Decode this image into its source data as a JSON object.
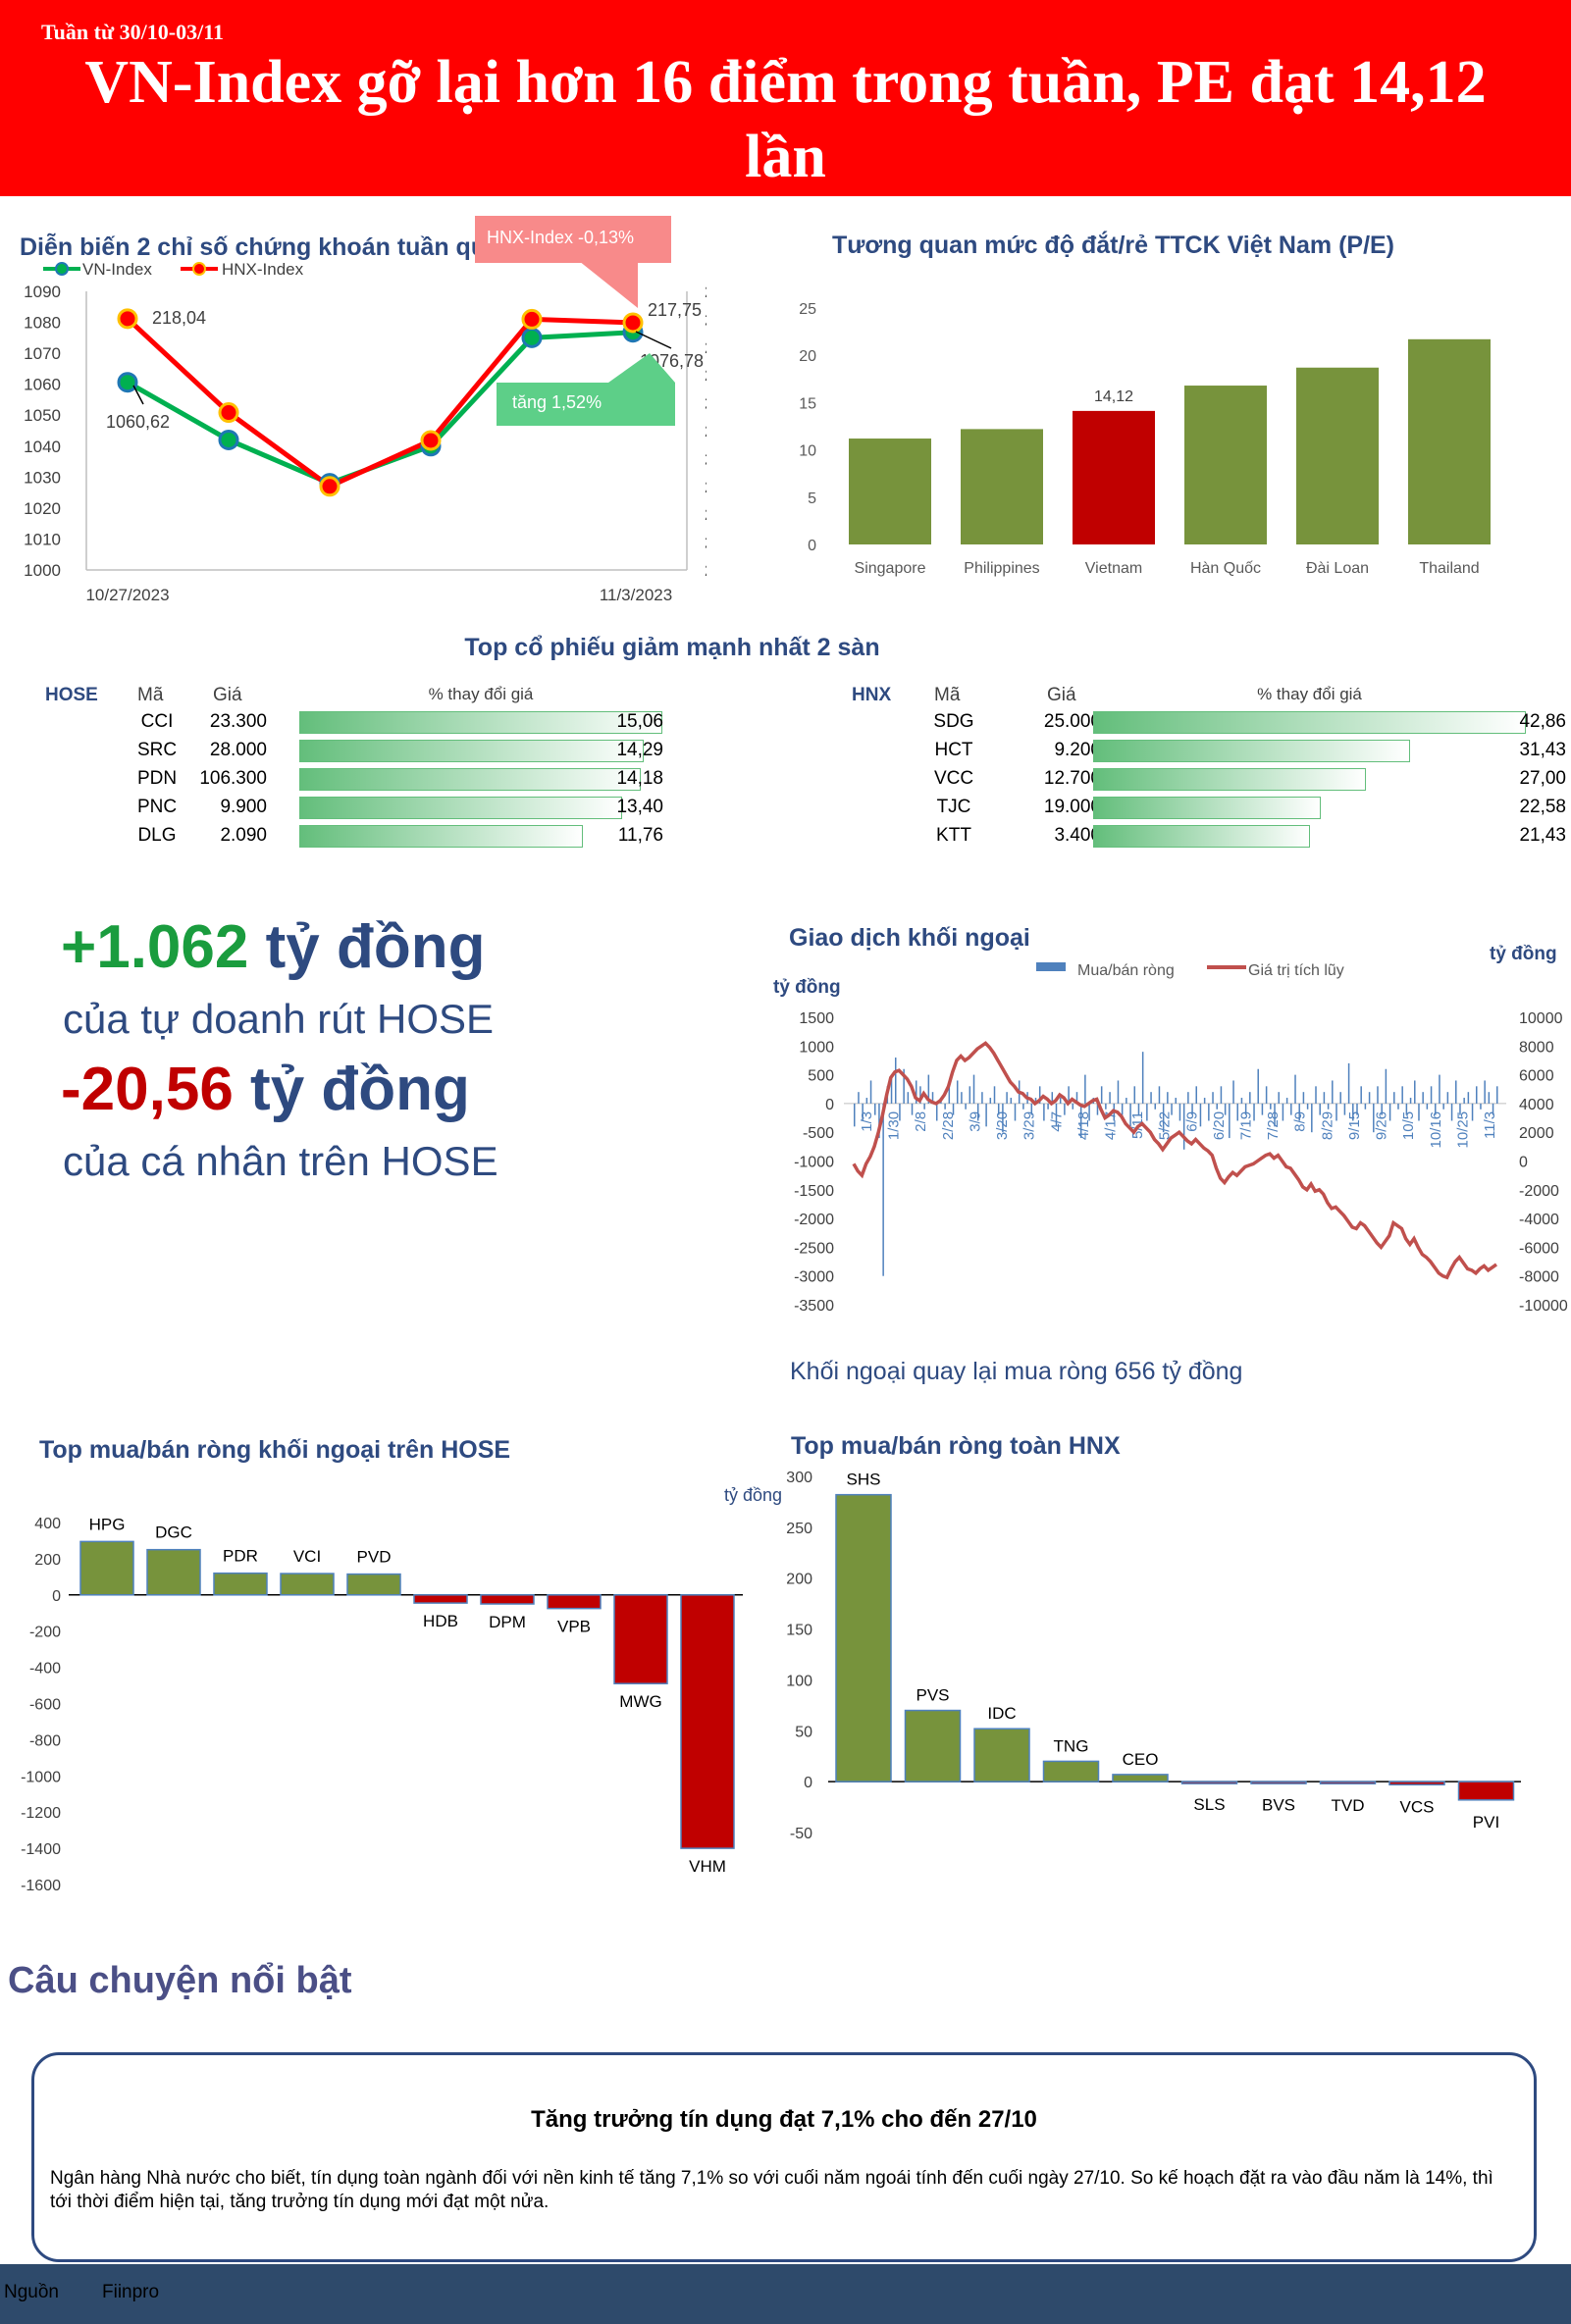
{
  "header": {
    "week": "Tuần từ 30/10-03/11",
    "headline": "VN-Index gỡ lại hơn 16 điểm trong tuần, PE đạt 14,12 lần"
  },
  "index_chart": {
    "title": "Diễn biến 2 chỉ số chứng khoán tuần qua",
    "callout_hnx": "HNX-Index -0,13%",
    "callout_vn": "tăng 1,52%",
    "label_vn_start": "1060,62",
    "label_vn_end": "1076,78",
    "label_hnx_start": "218,04",
    "label_hnx_end": "217,75",
    "colors": {
      "vn": "#00b050",
      "vn_marker": "#00b050",
      "vn_marker_edge": "#1f77b4",
      "hnx": "#ff0000",
      "hnx_marker": "#ff0000",
      "hnx_marker_edge": "#ffc000"
    }
  },
  "pe_chart": {
    "title": "Tương quan mức độ đắt/rẻ TTCK Việt Nam (P/E)",
    "highlight_label": "14,12"
  },
  "top_decliners": {
    "title": "Top cổ phiếu giảm mạnh nhất 2 sàn",
    "hose": {
      "exchange": "HOSE",
      "col_code": "Mã",
      "col_price": "Giá",
      "col_change": "% thay đổi giá",
      "rows": [
        {
          "code": "CCI",
          "price": "23.300",
          "change": "15,06",
          "value": 15.06
        },
        {
          "code": "SRC",
          "price": "28.000",
          "change": "14,29",
          "value": 14.29
        },
        {
          "code": "PDN",
          "price": "106.300",
          "change": "14,18",
          "value": 14.18
        },
        {
          "code": "PNC",
          "price": "9.900",
          "change": "13,40",
          "value": 13.4
        },
        {
          "code": "DLG",
          "price": "2.090",
          "change": "11,76",
          "value": 11.76
        }
      ]
    },
    "hnx": {
      "exchange": "HNX",
      "col_code": "Mã",
      "col_price": "Giá",
      "col_change": "% thay đổi giá",
      "rows": [
        {
          "code": "SDG",
          "price": "25.000",
          "change": "42,86",
          "value": 42.86
        },
        {
          "code": "HCT",
          "price": "9.200",
          "change": "31,43",
          "value": 31.43
        },
        {
          "code": "VCC",
          "price": "12.700",
          "change": "27,00",
          "value": 27.0
        },
        {
          "code": "TJC",
          "price": "19.000",
          "change": "22,58",
          "value": 22.58
        },
        {
          "code": "KTT",
          "price": "3.400",
          "change": "21,43",
          "value": 21.43
        }
      ]
    }
  },
  "highlights": {
    "num1": "+1.062",
    "unit1": "tỷ đồng",
    "desc1": "của tự doanh rút HOSE",
    "num2": "-20,56",
    "unit2": "tỷ đồng",
    "desc2": "của cá nhân trên HOSE",
    "color_pos": "#1a9c3e",
    "color_neg": "#c00000"
  },
  "foreign_chart": {
    "title": "Giao dịch khối ngoại",
    "unit_left": "tỷ đồng",
    "unit_right": "tỷ đồng",
    "legend_bar": "Mua/bán ròng",
    "legend_line": "Giá trị tích lũy",
    "caption": "Khối ngoại quay lại mua ròng 656 tỷ đồng"
  },
  "hose_foreign": {
    "title": "Top mua/bán ròng khối ngoại trên HOSE"
  },
  "hnx_foreign": {
    "title": "Top mua/bán ròng toàn HNX",
    "unit": "tỷ đồng"
  },
  "story": {
    "section_title": "Câu chuyện nổi bật",
    "headline": "Tăng trưởng tín dụng đạt 7,1% cho đến 27/10",
    "body": "Ngân hàng Nhà nước cho biết, tín dụng toàn ngành đối với nền kinh tế tăng 7,1% so với cuối năm ngoái tính đến cuối ngày 27/10. So kế hoạch đặt ra vào đầu năm là 14%, thì tới thời điểm hiện tại, tăng trưởng tín dụng mới đạt một nửa."
  },
  "footer": {
    "source_label": "Nguồn",
    "source": "Fiinpro"
  },
  "chart_data": [
    {
      "type": "line",
      "title": "Diễn biến 2 chỉ số chứng khoán tuần qua",
      "x": [
        "10/27/2023",
        "10/30/2023",
        "10/31/2023",
        "11/1/2023",
        "11/2/2023",
        "11/3/2023"
      ],
      "x_tick_labels": [
        "10/27/2023",
        "11/3/2023"
      ],
      "series": [
        {
          "name": "VN-Index",
          "axis": "left",
          "values": [
            1060.62,
            1042,
            1028,
            1040,
            1075,
            1076.78
          ]
        },
        {
          "name": "HNX-Index",
          "axis": "right",
          "values": [
            218.04,
            211.3,
            206.0,
            209.3,
            218.0,
            217.75
          ]
        }
      ],
      "ylim_left": [
        1000,
        1090
      ],
      "yticks_left": [
        1000,
        1010,
        1020,
        1030,
        1040,
        1050,
        1060,
        1070,
        1080,
        1090
      ],
      "ylim_right": [
        200,
        220
      ],
      "yticks_right": [
        200,
        202,
        204,
        206,
        208,
        210,
        212,
        214,
        216,
        218,
        220
      ],
      "legend": "top-left",
      "grid": false
    },
    {
      "type": "bar",
      "title": "Tương quan mức độ đắt/rẻ TTCK Việt Nam (P/E)",
      "categories": [
        "Singapore",
        "Philippines",
        "Vietnam",
        "Hàn Quốc",
        "Đài Loan",
        "Thailand"
      ],
      "values": [
        11.2,
        12.2,
        14.12,
        16.8,
        18.7,
        21.7
      ],
      "highlight": "Vietnam",
      "colors": {
        "default": "#77933c",
        "highlight": "#c00000"
      },
      "ylim": [
        0,
        25
      ],
      "yticks": [
        0,
        5,
        10,
        15,
        20,
        25
      ],
      "grid": false
    },
    {
      "type": "bar",
      "title": "Giao dịch khối ngoại",
      "x_tick_labels": [
        "1/3",
        "1/30",
        "2/8",
        "2/28",
        "3/9",
        "3/20",
        "3/29",
        "4/7",
        "4/18",
        "4/17",
        "5/11",
        "5/22",
        "6/9",
        "6/20",
        "7/19",
        "7/28",
        "8/9",
        "8/29",
        "9/15",
        "9/26",
        "10/5",
        "10/16",
        "10/25",
        "11/3"
      ],
      "ylim_left": [
        -3500,
        1500
      ],
      "yticks_left": [
        -3500,
        -3000,
        -2500,
        -2000,
        -1500,
        -1000,
        -500,
        0,
        500,
        1000,
        1500
      ],
      "ylim_right": [
        -10000,
        10000
      ],
      "yticks_right": [
        -10000,
        -8000,
        -6000,
        -4000,
        -2000,
        0,
        2000,
        4000,
        6000,
        8000,
        10000
      ],
      "series": [
        {
          "name": "Mua/bán ròng",
          "kind": "bar",
          "axis": "left",
          "color": "#4f81bd",
          "values": [
            -400,
            200,
            -300,
            100,
            400,
            -200,
            -600,
            -3000,
            300,
            500,
            800,
            -300,
            600,
            200,
            -200,
            400,
            300,
            -100,
            500,
            200,
            -300,
            100,
            -100,
            300,
            -200,
            400,
            200,
            -100,
            300,
            500,
            -300,
            200,
            -400,
            100,
            300,
            -200,
            -500,
            200,
            100,
            -300,
            400,
            -100,
            200,
            -200,
            100,
            300,
            -300,
            -100,
            200,
            -400,
            100,
            -200,
            300,
            -100,
            200,
            -600,
            500,
            -300,
            100,
            -200,
            300,
            -100,
            200,
            -300,
            400,
            -200,
            100,
            -400,
            300,
            -200,
            900,
            -300,
            200,
            -100,
            300,
            -500,
            200,
            -200,
            100,
            -300,
            -800,
            200,
            -200,
            300,
            -400,
            100,
            -300,
            200,
            -100,
            300,
            -200,
            -600,
            400,
            -300,
            100,
            -200,
            200,
            -300,
            600,
            -200,
            300,
            -100,
            -400,
            200,
            -300,
            100,
            -200,
            500,
            -300,
            200,
            -100,
            -500,
            300,
            -200,
            200,
            -100,
            400,
            -300,
            200,
            -200,
            700,
            -300,
            -200,
            300,
            -100,
            200,
            -500,
            300,
            -200,
            600,
            -300,
            200,
            -100,
            300,
            -200,
            100,
            400,
            -300,
            200,
            -100,
            300,
            -200,
            500,
            -100,
            200,
            -300,
            400,
            -200,
            100,
            200,
            -300,
            300,
            -100,
            400,
            200,
            -200,
            300
          ]
        },
        {
          "name": "Giá trị tích lũy",
          "kind": "line",
          "axis": "right",
          "color": "#c0504d",
          "values": [
            -200,
            -700,
            -1000,
            -200,
            300,
            1000,
            2000,
            3200,
            4600,
            5800,
            6200,
            6300,
            6000,
            5700,
            5200,
            4400,
            4200,
            4700,
            4300,
            4100,
            4000,
            4200,
            4600,
            5200,
            6200,
            7000,
            7300,
            7000,
            7200,
            7500,
            7800,
            8000,
            8200,
            7900,
            7500,
            7000,
            6500,
            6000,
            5500,
            5200,
            4800,
            4700,
            4400,
            4300,
            4000,
            4200,
            4500,
            4300,
            4000,
            4200,
            4600,
            4400,
            4000,
            4300,
            4100,
            3900,
            3800,
            4000,
            4200,
            4300,
            3600,
            3000,
            3200,
            3500,
            3400,
            3100,
            2600,
            2300,
            2000,
            2400,
            2600,
            2300,
            2000,
            1500,
            1200,
            800,
            1200,
            1600,
            1800,
            2000,
            1700,
            1400,
            1200,
            1500,
            1200,
            900,
            700,
            400,
            -500,
            -1200,
            -1500,
            -1100,
            -800,
            -1000,
            -700,
            -400,
            -300,
            -200,
            0,
            200,
            400,
            500,
            200,
            400,
            0,
            -400,
            -500,
            -900,
            -1300,
            -1800,
            -2000,
            -1600,
            -2100,
            -2000,
            -2300,
            -2900,
            -3300,
            -3200,
            -3500,
            -3800,
            -4200,
            -4600,
            -4700,
            -4300,
            -4500,
            -4900,
            -5300,
            -5700,
            -6000,
            -5600,
            -5200,
            -4300,
            -4500,
            -4700,
            -5400,
            -5800,
            -5400,
            -6000,
            -6500,
            -6700,
            -7000,
            -7400,
            -7800,
            -8000,
            -8100,
            -7500,
            -7000,
            -6700,
            -7100,
            -7500,
            -7600,
            -7800,
            -7500,
            -7300,
            -7600,
            -7400,
            -7200
          ]
        }
      ],
      "legend": "top-center",
      "grid": false
    },
    {
      "type": "bar",
      "title": "Top mua/bán ròng khối ngoại trên HOSE",
      "categories": [
        "HPG",
        "DGC",
        "PDR",
        "VCI",
        "PVD",
        "HDB",
        "DPM",
        "VPB",
        "MWG",
        "VHM"
      ],
      "values": [
        295,
        250,
        120,
        118,
        115,
        -45,
        -50,
        -75,
        -490,
        -1400
      ],
      "colors": {
        "positive": "#77933c",
        "negative": "#c00000"
      },
      "ylim": [
        -1600,
        400
      ],
      "yticks": [
        -1600,
        -1400,
        -1200,
        -1000,
        -800,
        -600,
        -400,
        -200,
        0,
        200,
        400
      ],
      "grid": false
    },
    {
      "type": "bar",
      "title": "Top mua/bán ròng toàn HNX",
      "ylabel": "tỷ đồng",
      "categories": [
        "SHS",
        "PVS",
        "IDC",
        "TNG",
        "CEO",
        "SLS",
        "BVS",
        "TVD",
        "VCS",
        "PVI"
      ],
      "values": [
        282,
        70,
        52,
        20,
        7,
        -1,
        -1.5,
        -2,
        -3,
        -18
      ],
      "colors": {
        "positive": "#77933c",
        "negative": "#c00000"
      },
      "ylim": [
        -50,
        300
      ],
      "yticks": [
        -50,
        0,
        50,
        100,
        150,
        200,
        250,
        300
      ],
      "grid": false
    }
  ]
}
